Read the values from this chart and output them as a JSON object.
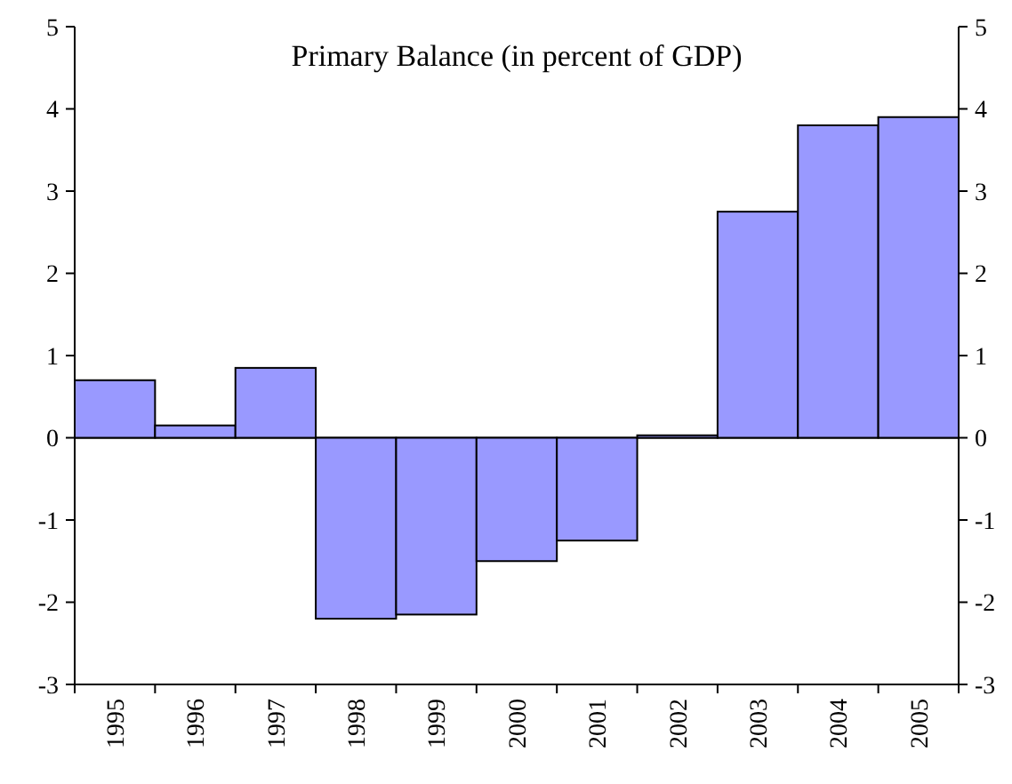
{
  "chart_data": {
    "type": "bar",
    "title": "Primary Balance (in percent of GDP)",
    "categories": [
      "1995",
      "1996",
      "1997",
      "1998",
      "1999",
      "2000",
      "2001",
      "2002",
      "2003",
      "2004",
      "2005"
    ],
    "values": [
      0.7,
      0.15,
      0.85,
      -2.2,
      -2.15,
      -1.5,
      -1.25,
      0.03,
      2.75,
      3.8,
      3.9
    ],
    "color": "#9999ff",
    "ylim": [
      -3,
      5
    ],
    "yticks": [
      -3,
      -2,
      -1,
      0,
      1,
      2,
      3,
      4,
      5
    ],
    "y2lim": [
      -3,
      5
    ],
    "y2ticks": [
      -3,
      -2,
      -1,
      0,
      1,
      2,
      3,
      4,
      5
    ]
  }
}
